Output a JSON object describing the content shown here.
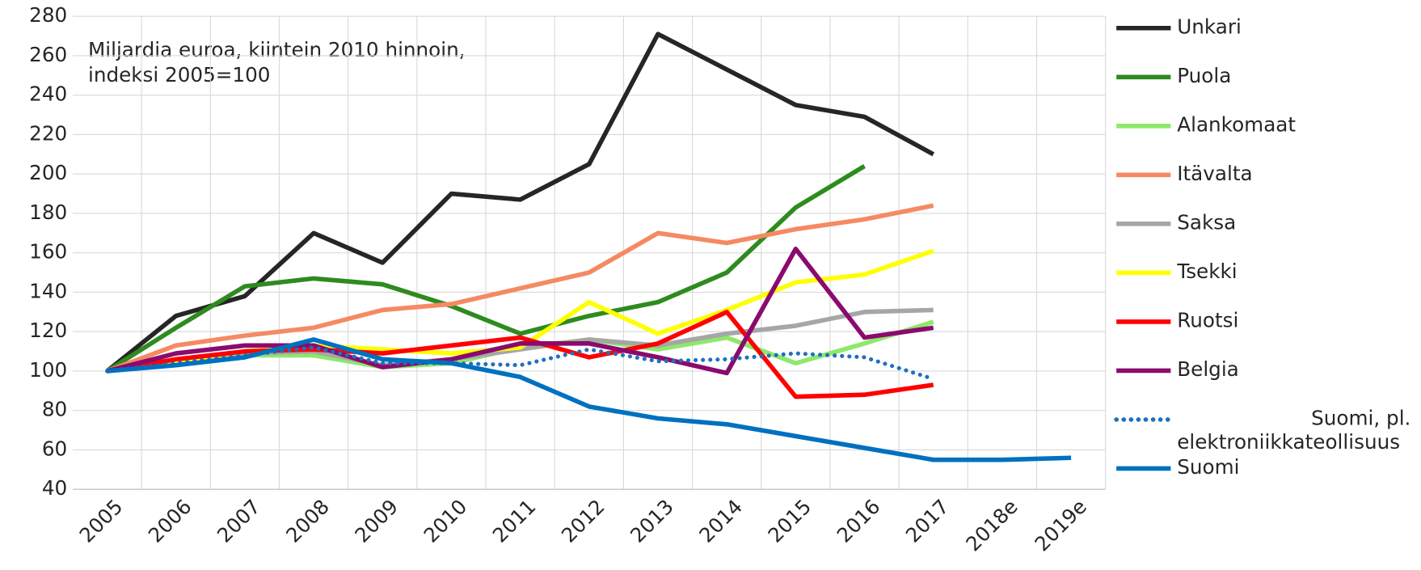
{
  "chart_data": {
    "type": "line",
    "annotation": [
      "Miljardia euroa, kiintein 2010 hinnoin,",
      "indeksi 2005=100"
    ],
    "categories": [
      "2005",
      "2006",
      "2007",
      "2008",
      "2009",
      "2010",
      "2011",
      "2012",
      "2013",
      "2014",
      "2015",
      "2016",
      "2017",
      "2018e",
      "2019e"
    ],
    "ylim": [
      40,
      280
    ],
    "yticks": [
      40,
      60,
      80,
      100,
      120,
      140,
      160,
      180,
      200,
      220,
      240,
      260,
      280
    ],
    "grid": true,
    "legend": "right",
    "series": [
      {
        "name": "Unkari",
        "color": "#262626",
        "values": [
          100,
          128,
          138,
          170,
          155,
          190,
          187,
          205,
          271,
          253,
          235,
          229,
          210,
          null,
          null
        ]
      },
      {
        "name": "Puola",
        "color": "#2e8b1e",
        "values": [
          100,
          122,
          143,
          147,
          144,
          133,
          119,
          128,
          135,
          150,
          183,
          204,
          null,
          null,
          null
        ]
      },
      {
        "name": "Alankomaat",
        "color": "#8ee86a",
        "values": [
          100,
          106,
          108,
          108,
          102,
          104,
          112,
          116,
          111,
          117,
          104,
          114,
          125,
          null,
          null
        ]
      },
      {
        "name": "Itävalta",
        "color": "#f58a62",
        "values": [
          100,
          113,
          118,
          122,
          131,
          134,
          142,
          150,
          170,
          165,
          172,
          177,
          184,
          null,
          null
        ]
      },
      {
        "name": "Saksa",
        "color": "#a6a6a6",
        "values": [
          100,
          106,
          109,
          110,
          103,
          106,
          111,
          116,
          113,
          119,
          123,
          130,
          131,
          null,
          null
        ]
      },
      {
        "name": "Tsekki",
        "color": "#ffff00",
        "values": [
          100,
          105,
          110,
          113,
          111,
          109,
          112,
          135,
          119,
          131,
          145,
          149,
          161,
          null,
          null
        ]
      },
      {
        "name": "Ruotsi",
        "color": "#ff0000",
        "values": [
          100,
          106,
          110,
          111,
          109,
          113,
          117,
          107,
          114,
          130,
          87,
          88,
          93,
          null,
          null
        ]
      },
      {
        "name": "Belgia",
        "color": "#8b0a6e",
        "values": [
          100,
          109,
          113,
          113,
          102,
          106,
          114,
          114,
          107,
          99,
          162,
          117,
          122,
          null,
          null
        ]
      },
      {
        "name": "Suomi, pl. elektroniikkateollisuus",
        "color": "#1f6fc0",
        "dashed": true,
        "values": [
          100,
          104,
          108,
          112,
          104,
          104,
          103,
          111,
          105,
          106,
          109,
          107,
          96,
          null,
          null
        ]
      },
      {
        "name": "Suomi",
        "color": "#0070c0",
        "values": [
          100,
          103,
          107,
          116,
          106,
          104,
          97,
          82,
          76,
          73,
          67,
          61,
          55,
          55,
          56
        ]
      }
    ]
  }
}
